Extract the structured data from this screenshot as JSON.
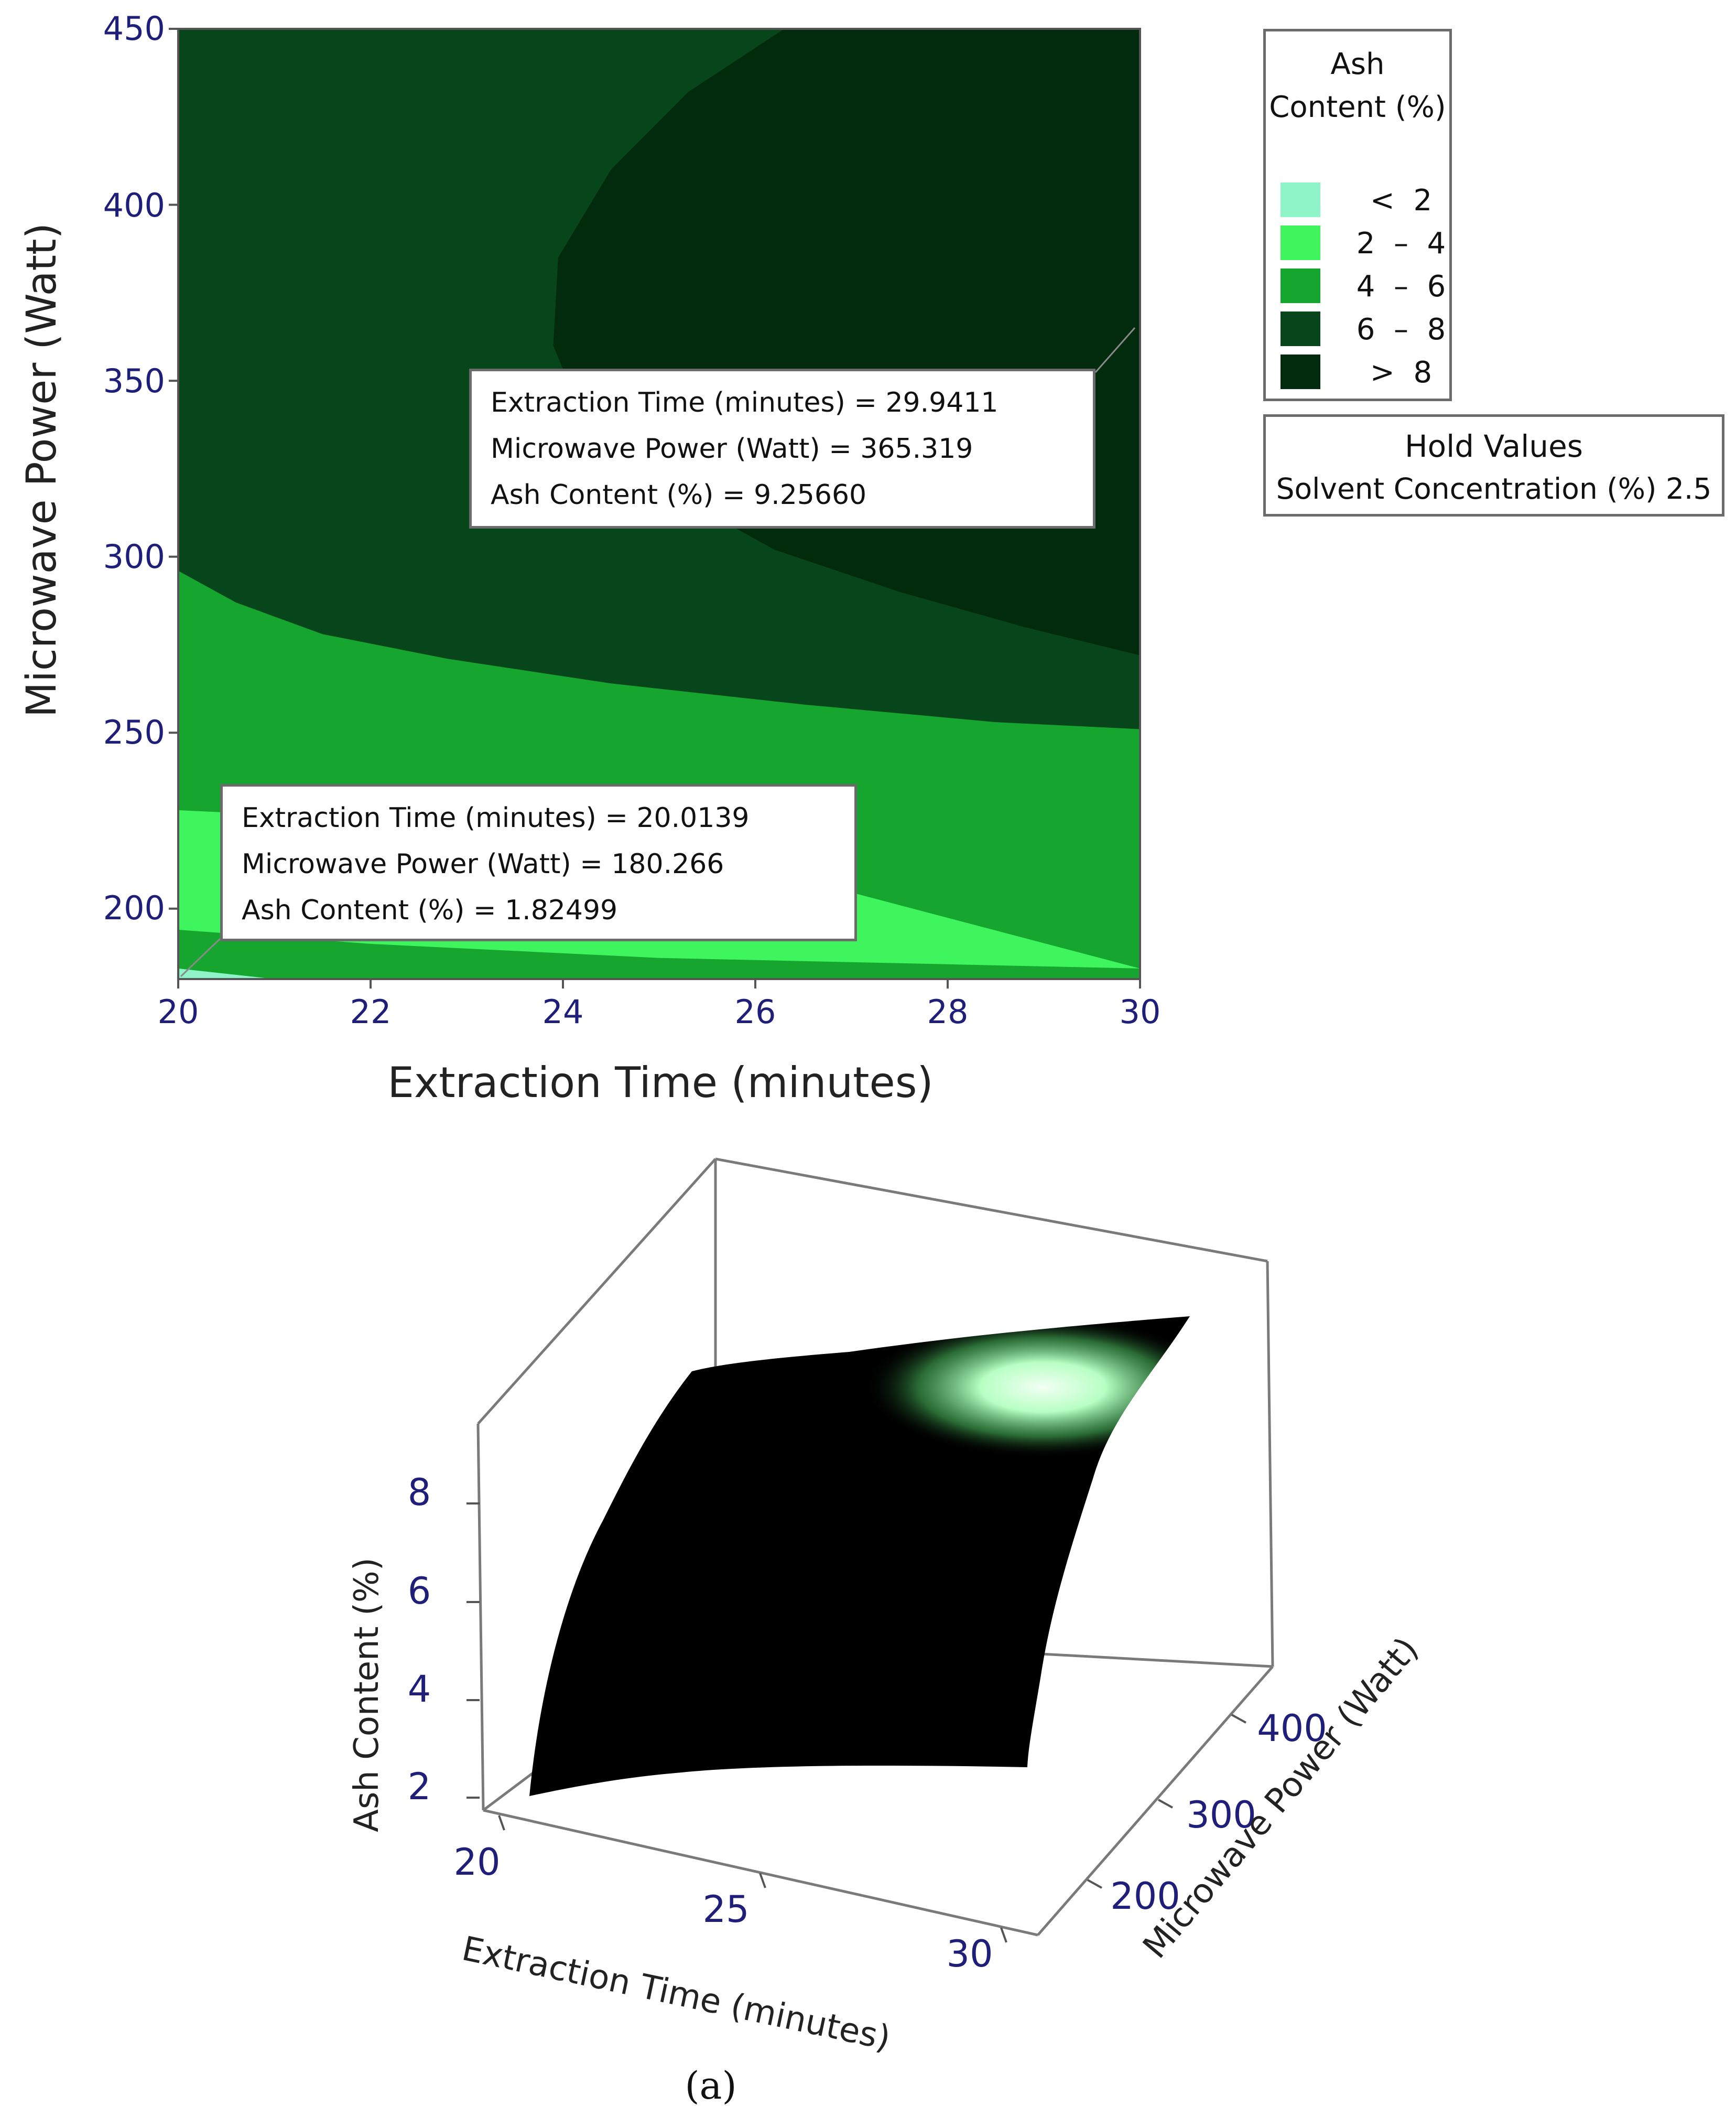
{
  "chart_data": [
    {
      "type": "contour",
      "xlabel": "Extraction Time (minutes)",
      "ylabel": "Microwave Power (Watt)",
      "xlim": [
        20,
        30
      ],
      "ylim": [
        180,
        450
      ],
      "x_ticks": [
        "20",
        "22",
        "24",
        "26",
        "28",
        "30"
      ],
      "y_ticks": [
        "200",
        "250",
        "300",
        "350",
        "400",
        "450"
      ],
      "legend": {
        "title_lines": [
          "Ash",
          "Content (%)"
        ],
        "placement": "right",
        "entries": [
          {
            "label": "<  2",
            "color": "#8ff5c9"
          },
          {
            "label": "2  –  4",
            "color": "#3ff55e"
          },
          {
            "label": "4  –  6",
            "color": "#16a52e"
          },
          {
            "label": "6  –  8",
            "color": "#07461a"
          },
          {
            "label": ">  8",
            "color": "#022a0c"
          }
        ]
      },
      "hold_values": {
        "title": "Hold Values",
        "line": "Solvent Concentration (%) 2.5"
      },
      "annotations": [
        {
          "lines": [
            "Extraction Time (minutes) = 29.9411",
            "Microwave Power (Watt) = 365.319",
            "Ash Content (%) = 9.25660"
          ],
          "point": {
            "x": 29.9411,
            "y": 365.319
          }
        },
        {
          "lines": [
            "Extraction Time (minutes) = 20.0139",
            "Microwave Power (Watt) = 180.266",
            "Ash Content (%) = 1.82499"
          ],
          "point": {
            "x": 20.0139,
            "y": 180.266
          }
        }
      ],
      "regions_boundaries": [
        {
          "level": 8,
          "points": [
            [
              30,
              272
            ],
            [
              28.8,
              280
            ],
            [
              27.5,
              290
            ],
            [
              26.2,
              302
            ],
            [
              25,
              320
            ],
            [
              24.2,
              340
            ],
            [
              23.9,
              360
            ],
            [
              23.95,
              385
            ],
            [
              24.5,
              410
            ],
            [
              25.3,
              432
            ],
            [
              26.3,
              450
            ]
          ]
        },
        {
          "level": 6,
          "points": [
            [
              20,
              296
            ],
            [
              20.6,
              287
            ],
            [
              21.5,
              278
            ],
            [
              22.8,
              271
            ],
            [
              24.5,
              264
            ],
            [
              26.5,
              258
            ],
            [
              28.5,
              253
            ],
            [
              30,
              251
            ]
          ]
        },
        {
          "level": 4,
          "points": [
            [
              20,
              228
            ],
            [
              21.5,
              226
            ],
            [
              23,
              223
            ],
            [
              25,
              219
            ],
            [
              27,
              217
            ],
            [
              30,
              215
            ]
          ]
        },
        {
          "level": 2,
          "points": [
            [
              20,
              183
            ],
            [
              21,
              182
            ]
          ]
        }
      ]
    },
    {
      "type": "surface3d",
      "zlabel": "Ash Content (%)",
      "xlabel": "Extraction Time (minutes)",
      "ylabel": "Microwave Power (Watt)",
      "z_ticks": [
        "2",
        "4",
        "6",
        "8"
      ],
      "x_ticks": [
        "20",
        "25",
        "30"
      ],
      "y_ticks": [
        "200",
        "300",
        "400"
      ]
    }
  ],
  "caption": "(a)"
}
